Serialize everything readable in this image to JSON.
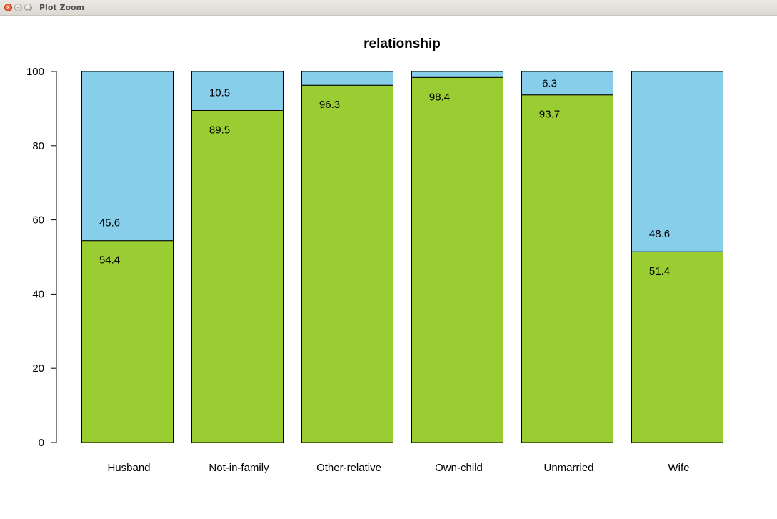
{
  "window": {
    "title": "Plot Zoom",
    "close_glyph": "×",
    "minimize_glyph": "–",
    "maximize_glyph": "□"
  },
  "chart_data": {
    "type": "bar",
    "stacked": true,
    "title": "relationship",
    "xlabel": "",
    "ylabel": "",
    "ylim": [
      0,
      100
    ],
    "yticks": [
      0,
      20,
      40,
      60,
      80,
      100
    ],
    "categories": [
      "Husband",
      "Not-in-family",
      "Other-relative",
      "Own-child",
      "Unmarried",
      "Wife"
    ],
    "series": [
      {
        "color": "#9acd32",
        "values": [
          54.4,
          89.5,
          96.3,
          98.4,
          93.7,
          51.4
        ],
        "labels": [
          "54.4",
          "89.5",
          "96.3",
          "98.4",
          "93.7",
          "51.4"
        ]
      },
      {
        "color": "#87ceeb",
        "values": [
          45.6,
          10.5,
          3.7,
          1.6,
          6.3,
          48.6
        ],
        "labels": [
          "45.6",
          "10.5",
          "",
          "",
          "6.3",
          "48.6"
        ]
      }
    ],
    "grid": false,
    "legend": "none"
  }
}
